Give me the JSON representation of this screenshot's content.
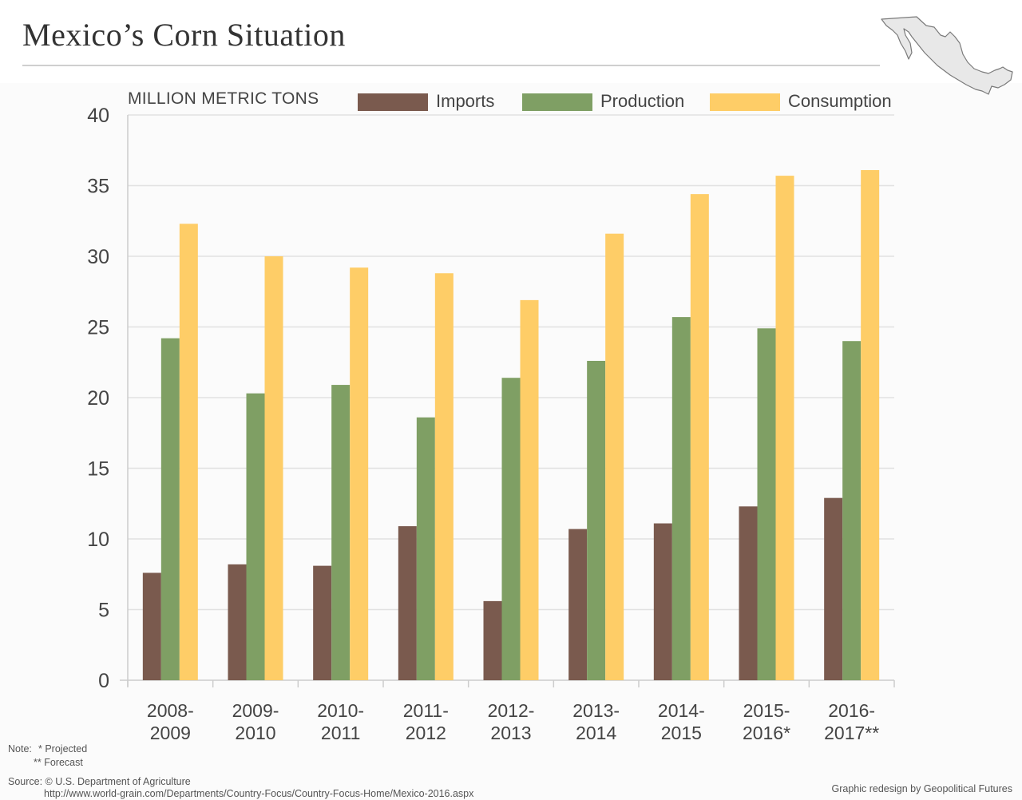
{
  "header": {
    "title": "Mexico’s Corn Situation"
  },
  "icons": {
    "map": "mexico-map-icon"
  },
  "colors": {
    "imports": "#7a5a4e",
    "production": "#7f9f64",
    "consumption": "#fecd67",
    "grid": "#e2e2e2",
    "axis": "#cccccc",
    "text": "#444444"
  },
  "chart_data": {
    "type": "bar",
    "title": "Mexico’s Corn Situation",
    "ylabel": "MILLION METRIC TONS",
    "xlabel": "",
    "ylim": [
      0,
      40
    ],
    "yticks": [
      0,
      5,
      10,
      15,
      20,
      25,
      30,
      35,
      40
    ],
    "grid": true,
    "legend_position": "top-right",
    "categories": [
      [
        "2008-",
        "2009"
      ],
      [
        "2009-",
        "2010"
      ],
      [
        "2010-",
        "2011"
      ],
      [
        "2011-",
        "2012"
      ],
      [
        "2012-",
        "2013"
      ],
      [
        "2013-",
        "2014"
      ],
      [
        "2014-",
        "2015"
      ],
      [
        "2015-",
        "2016*"
      ],
      [
        "2016-",
        "2017**"
      ]
    ],
    "series": [
      {
        "name": "Imports",
        "color": "#7a5a4e",
        "values": [
          7.6,
          8.2,
          8.1,
          10.9,
          5.6,
          10.7,
          11.1,
          12.3,
          12.9
        ]
      },
      {
        "name": "Production",
        "color": "#7f9f64",
        "values": [
          24.2,
          20.3,
          20.9,
          18.6,
          21.4,
          22.6,
          25.7,
          24.9,
          24.0
        ]
      },
      {
        "name": "Consumption",
        "color": "#fecd67",
        "values": [
          32.3,
          30.0,
          29.2,
          28.8,
          26.9,
          31.6,
          34.4,
          35.7,
          36.1
        ]
      }
    ]
  },
  "footer": {
    "note_label": "Note:",
    "note_projected": "* Projected",
    "note_forecast": "** Forecast",
    "source_label": "Source: © U.S. Department of Agriculture",
    "source_url": "http://www.world-grain.com/Departments/Country-Focus/Country-Focus-Home/Mexico-2016.aspx",
    "credit": "Graphic redesign by Geopolitical Futures"
  }
}
